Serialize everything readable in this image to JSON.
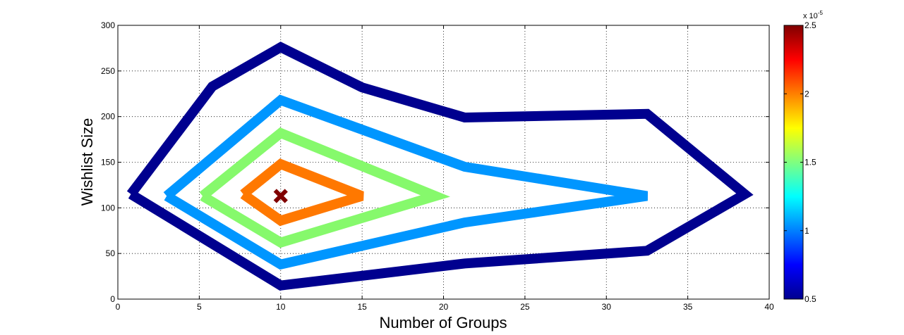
{
  "chart_data": {
    "type": "contour",
    "xlabel": "Number of Groups",
    "ylabel": "Wishlist Size",
    "xlim": [
      0,
      40
    ],
    "ylim": [
      0,
      300
    ],
    "xticks": [
      "0",
      "5",
      "10",
      "15",
      "20",
      "25",
      "30",
      "35",
      "40"
    ],
    "yticks": [
      "0",
      "50",
      "100",
      "150",
      "200",
      "250",
      "300"
    ],
    "grid": true,
    "colormap": "jet",
    "colorbar": {
      "range": [
        0.5,
        2.5
      ],
      "ticks": [
        "0.5",
        "1",
        "1.5",
        "2",
        "2.5"
      ],
      "exponent_label": "x 10",
      "exponent": "-5",
      "placement": "right"
    },
    "contours": [
      {
        "level": 0.6,
        "color": "#00008f",
        "points": [
          [
            0.8,
            115
          ],
          [
            5.8,
            233
          ],
          [
            10,
            276
          ],
          [
            15,
            232
          ],
          [
            21.3,
            199
          ],
          [
            32.5,
            203
          ],
          [
            38.5,
            115
          ],
          [
            32.5,
            53
          ],
          [
            21.3,
            39
          ],
          [
            10,
            15
          ],
          [
            0.8,
            115
          ]
        ]
      },
      {
        "level": 0.95,
        "color": "#0096ff",
        "points": [
          [
            3,
            113
          ],
          [
            10,
            218
          ],
          [
            21.3,
            145
          ],
          [
            32.5,
            113
          ],
          [
            21.3,
            84
          ],
          [
            10,
            38
          ],
          [
            3,
            113
          ]
        ]
      },
      {
        "level": 1.55,
        "color": "#86f96c",
        "points": [
          [
            5.2,
            113
          ],
          [
            10,
            182
          ],
          [
            19.5,
            113
          ],
          [
            10,
            62
          ],
          [
            5.2,
            113
          ]
        ]
      },
      {
        "level": 2.08,
        "color": "#ff7800",
        "points": [
          [
            7.7,
            115
          ],
          [
            10,
            148
          ],
          [
            15,
            113
          ],
          [
            10,
            86
          ],
          [
            7.7,
            115
          ]
        ]
      }
    ],
    "peak": {
      "x": 10,
      "y": 113,
      "marker": "x",
      "color": "#800000"
    }
  }
}
